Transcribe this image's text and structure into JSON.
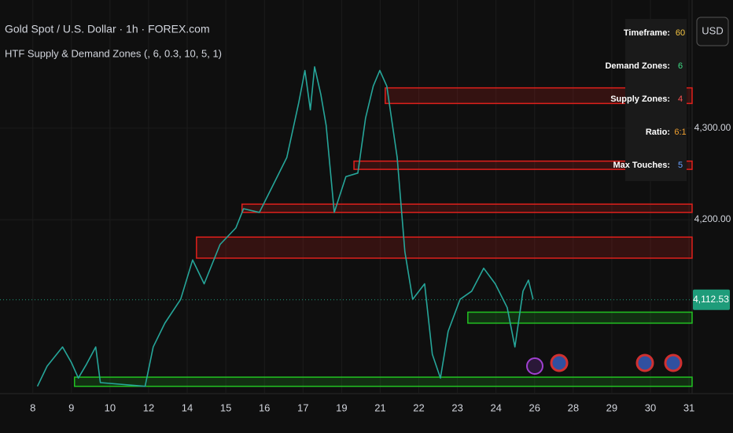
{
  "chart_data": {
    "type": "line",
    "title": "Gold Spot / U.S. Dollar · 1h · FOREX.com",
    "subtitle": "HTF Supply & Demand Zones (, 6, 0.3, 10, 5, 1)",
    "currency": "USD",
    "xlim": [
      -0.85,
      17.08
    ],
    "xticks": [
      {
        "value": 0,
        "label": "8"
      },
      {
        "value": 1,
        "label": "9"
      },
      {
        "value": 2,
        "label": "10"
      },
      {
        "value": 3,
        "label": "12"
      },
      {
        "value": 4,
        "label": "14"
      },
      {
        "value": 5,
        "label": "15"
      },
      {
        "value": 6,
        "label": "16"
      },
      {
        "value": 7,
        "label": "17"
      },
      {
        "value": 8,
        "label": "19"
      },
      {
        "value": 9,
        "label": "21"
      },
      {
        "value": 10,
        "label": "22"
      },
      {
        "value": 11,
        "label": "23"
      },
      {
        "value": 12,
        "label": "24"
      },
      {
        "value": 13,
        "label": "26"
      },
      {
        "value": 14,
        "label": "28"
      },
      {
        "value": 15,
        "label": "29"
      },
      {
        "value": 16,
        "label": "30"
      },
      {
        "value": 17,
        "label": "31"
      }
    ],
    "ylim": [
      4010,
      4440
    ],
    "yticks": [
      {
        "value": 4200,
        "label": "4,200.00"
      },
      {
        "value": 4300,
        "label": "4,300.00"
      }
    ],
    "grid": true,
    "series": [
      {
        "color": "#26a69a",
        "x": [
          0.12,
          0.37,
          0.77,
          1.0,
          1.18,
          1.39,
          1.63,
          1.75,
          2.91,
          3.12,
          3.42,
          3.83,
          4.14,
          4.44,
          4.85,
          5.26,
          5.46,
          5.87,
          6.18,
          6.58,
          6.89,
          7.05,
          7.19,
          7.3,
          7.46,
          7.6,
          7.81,
          8.11,
          8.42,
          8.62,
          8.82,
          8.99,
          9.17,
          9.44,
          9.64,
          9.84,
          10.15,
          10.35,
          10.56,
          10.76,
          11.07,
          11.37,
          11.68,
          11.98,
          12.29,
          12.49,
          12.7,
          12.84,
          12.96
        ],
        "values": [
          4018,
          4040,
          4061,
          4044,
          4027,
          4042,
          4061,
          4022,
          4018,
          4061,
          4087,
          4113,
          4156,
          4130,
          4173,
          4191,
          4212,
          4208,
          4234,
          4268,
          4328,
          4363,
          4320,
          4367,
          4337,
          4303,
          4208,
          4247,
          4251,
          4311,
          4346,
          4363,
          4346,
          4268,
          4165,
          4113,
          4130,
          4053,
          4027,
          4078,
          4113,
          4122,
          4147,
          4130,
          4104,
          4061,
          4122,
          4134,
          4113
        ]
      }
    ],
    "zones": [
      {
        "x0": 9.13,
        "low": 4327,
        "high": 4344,
        "color": "#e0201c"
      },
      {
        "x0": 8.32,
        "low": 4255,
        "high": 4264,
        "color": "#e0201c"
      },
      {
        "x0": 5.42,
        "low": 4208,
        "high": 4217,
        "color": "#e0201c"
      },
      {
        "x0": 4.24,
        "low": 4158,
        "high": 4181,
        "color": "#e0201c"
      },
      {
        "x0": 11.27,
        "low": 4087,
        "high": 4099,
        "color": "#22c322"
      },
      {
        "x0": 1.08,
        "low": 4018,
        "high": 4028,
        "color": "#22c322"
      }
    ],
    "last_price": {
      "value": 4112.53,
      "label": "4,112.53",
      "color": "#1e9c7a"
    },
    "table": [
      {
        "label": "Timeframe:",
        "value": "60",
        "color": "#f5c542"
      },
      {
        "label": "Demand Zones:",
        "value": "6",
        "color": "#3ddc84"
      },
      {
        "label": "Supply Zones:",
        "value": "4",
        "color": "#ff5252"
      },
      {
        "label": "Ratio:",
        "value": "6:1",
        "color": "#f0a030"
      },
      {
        "label": "Max Touches:",
        "value": "5",
        "color": "#6aa0ff"
      }
    ]
  }
}
